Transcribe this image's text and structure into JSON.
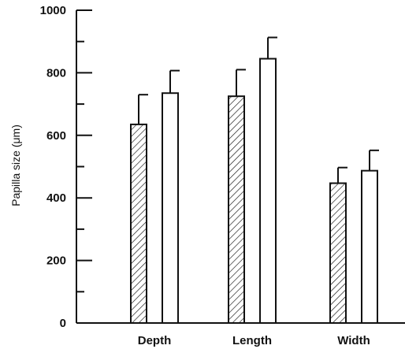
{
  "chart_data": {
    "type": "bar",
    "categories": [
      "Depth",
      "Length",
      "Width"
    ],
    "series": [
      {
        "pattern": "hatched",
        "values": [
          635,
          725,
          447
        ],
        "error": [
          95,
          85,
          50
        ]
      },
      {
        "pattern": "open",
        "values": [
          735,
          845,
          487
        ],
        "error": [
          72,
          68,
          65
        ]
      }
    ],
    "ylabel": "Papilla size (μm)",
    "xlabel": "",
    "ylim": [
      0,
      1000
    ],
    "y_ticks": [
      0,
      200,
      400,
      600,
      800,
      1000
    ],
    "y_tick_labels": [
      "0",
      "200",
      "400",
      "600",
      "800",
      "1000"
    ],
    "grid": false,
    "colors": {
      "stroke": "#111111",
      "fill": "#ffffff"
    }
  }
}
